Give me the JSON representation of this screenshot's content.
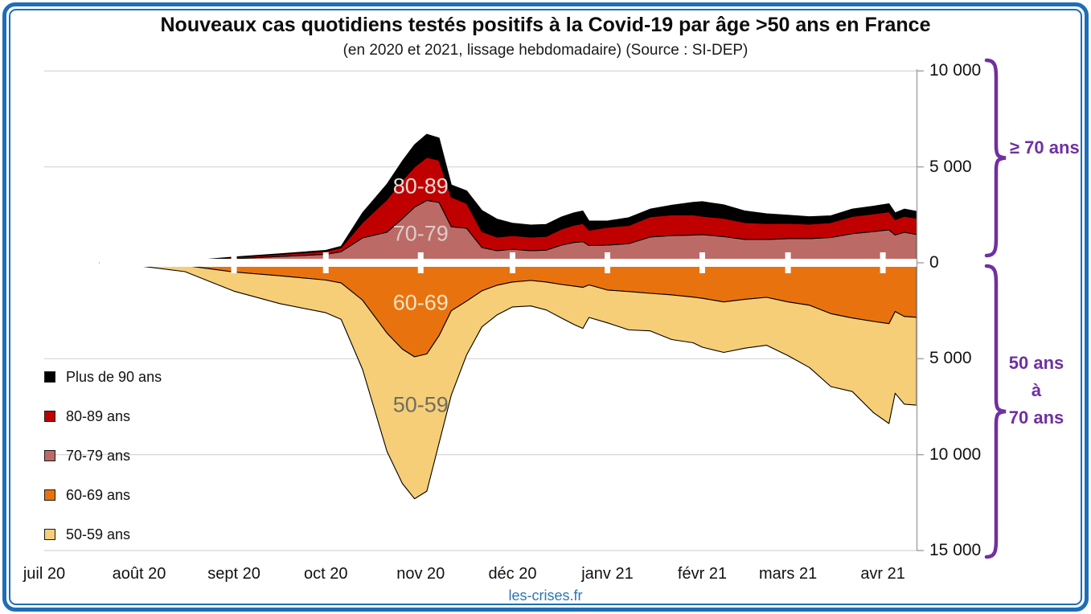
{
  "frame": {
    "border_color": "#1E6EB5"
  },
  "footer": {
    "site_label": "les-crises.fr"
  },
  "chart_data": {
    "type": "area",
    "stacked": true,
    "mirrored": true,
    "title": "Nouveaux cas quotidiens testés positifs à la Covid-19 par âge >50 ans en France",
    "subtitle": "(en 2020 et 2021, lissage hebdomadaire) (Source : SI-DEP)",
    "x_axis": {
      "note": "days since 2020-07-01, weekly-smoothed daily new positive cases",
      "tick_labels": [
        "juil 20",
        "août 20",
        "sept 20",
        "oct 20",
        "nov 20",
        "déc 20",
        "janv 21",
        "févr 21",
        "mars 21",
        "avr 21"
      ],
      "tick_days": [
        0,
        31,
        62,
        92,
        123,
        153,
        184,
        215,
        243,
        274
      ],
      "domain_days": [
        0,
        285
      ]
    },
    "y_axis": {
      "tick_labels": [
        "10 000",
        "5 000",
        "0",
        "5 000",
        "10 000",
        "15 000"
      ],
      "tick_values": [
        10000,
        5000,
        0,
        -5000,
        -10000,
        -15000
      ],
      "upper_max": 10000,
      "lower_max": 15000,
      "grid": true
    },
    "series": [
      {
        "name": "Plus de 90 ans",
        "color": "#000000",
        "side": "up",
        "stack_order": 3
      },
      {
        "name": "80-89 ans",
        "color": "#C00000",
        "side": "up",
        "stack_order": 2
      },
      {
        "name": "70-79 ans",
        "color": "#BC6A66",
        "side": "up",
        "stack_order": 1
      },
      {
        "name": "60-69 ans",
        "color": "#E8730E",
        "side": "down",
        "stack_order": 1
      },
      {
        "name": "50-59 ans",
        "color": "#F6CE78",
        "side": "down",
        "stack_order": 2
      }
    ],
    "legend_position": "left-middle",
    "value_order": [
      "Plus de 90 ans",
      "80-89 ans",
      "70-79 ans",
      "60-69 ans",
      "50-59 ans"
    ],
    "samples": [
      {
        "day": 18,
        "values": [
          0,
          0,
          0,
          0,
          0
        ]
      },
      {
        "day": 31,
        "values": [
          5,
          10,
          20,
          50,
          110
        ]
      },
      {
        "day": 46,
        "values": [
          10,
          25,
          55,
          140,
          320
        ]
      },
      {
        "day": 62,
        "values": [
          25,
          65,
          210,
          480,
          1000
        ]
      },
      {
        "day": 77,
        "values": [
          35,
          105,
          330,
          680,
          1450
        ]
      },
      {
        "day": 92,
        "values": [
          50,
          160,
          440,
          900,
          1700
        ]
      },
      {
        "day": 97,
        "values": [
          70,
          210,
          580,
          1050,
          1900
        ]
      },
      {
        "day": 104,
        "values": [
          500,
          800,
          1300,
          1950,
          3600
        ]
      },
      {
        "day": 112,
        "values": [
          800,
          1700,
          1600,
          3670,
          6170
        ]
      },
      {
        "day": 117,
        "values": [
          1000,
          2000,
          2300,
          4500,
          7000
        ]
      },
      {
        "day": 121,
        "values": [
          1150,
          2100,
          2900,
          4900,
          7400
        ]
      },
      {
        "day": 125,
        "values": [
          1200,
          2250,
          3250,
          4750,
          7150
        ]
      },
      {
        "day": 129,
        "values": [
          1150,
          2200,
          3150,
          3800,
          5600
        ]
      },
      {
        "day": 133,
        "values": [
          630,
          1550,
          1880,
          2500,
          4400
        ]
      },
      {
        "day": 138,
        "values": [
          650,
          1300,
          1800,
          2000,
          2800
        ]
      },
      {
        "day": 143,
        "values": [
          1100,
          830,
          800,
          1460,
          1880
        ]
      },
      {
        "day": 148,
        "values": [
          930,
          710,
          630,
          1170,
          1540
        ]
      },
      {
        "day": 153,
        "values": [
          640,
          710,
          710,
          1000,
          1300
        ]
      },
      {
        "day": 159,
        "values": [
          630,
          710,
          630,
          920,
          1330
        ]
      },
      {
        "day": 164,
        "values": [
          620,
          720,
          660,
          1000,
          1460
        ]
      },
      {
        "day": 169,
        "values": [
          630,
          840,
          920,
          1130,
          1750
        ]
      },
      {
        "day": 173,
        "values": [
          640,
          900,
          1060,
          1210,
          2000
        ]
      },
      {
        "day": 176,
        "values": [
          650,
          950,
          1100,
          1280,
          2140
        ]
      },
      {
        "day": 178,
        "values": [
          480,
          800,
          900,
          1150,
          1700
        ]
      },
      {
        "day": 184,
        "values": [
          330,
          930,
          920,
          1420,
          1710
        ]
      },
      {
        "day": 191,
        "values": [
          400,
          950,
          1000,
          1500,
          2000
        ]
      },
      {
        "day": 198,
        "values": [
          400,
          1050,
          1350,
          1590,
          1960
        ]
      },
      {
        "day": 205,
        "values": [
          500,
          1080,
          1420,
          1670,
          2330
        ]
      },
      {
        "day": 212,
        "values": [
          650,
          1050,
          1450,
          1790,
          2380
        ]
      },
      {
        "day": 215,
        "values": [
          755,
          965,
          1470,
          1850,
          2550
        ]
      },
      {
        "day": 222,
        "values": [
          700,
          950,
          1370,
          2040,
          2630
        ]
      },
      {
        "day": 229,
        "values": [
          600,
          880,
          1220,
          1900,
          2550
        ]
      },
      {
        "day": 236,
        "values": [
          500,
          830,
          1220,
          1800,
          2500
        ]
      },
      {
        "day": 243,
        "values": [
          420,
          800,
          1260,
          2040,
          2800
        ]
      },
      {
        "day": 250,
        "values": [
          380,
          760,
          1260,
          2210,
          3250
        ]
      },
      {
        "day": 257,
        "values": [
          350,
          780,
          1320,
          2650,
          3800
        ]
      },
      {
        "day": 264,
        "values": [
          380,
          900,
          1520,
          2880,
          3830
        ]
      },
      {
        "day": 271,
        "values": [
          400,
          920,
          1630,
          3060,
          4760
        ]
      },
      {
        "day": 276,
        "values": [
          420,
          940,
          1720,
          3170,
          5210
        ]
      },
      {
        "day": 278,
        "values": [
          350,
          800,
          1450,
          2540,
          4260
        ]
      },
      {
        "day": 281,
        "values": [
          370,
          840,
          1590,
          2800,
          4570
        ]
      },
      {
        "day": 285,
        "values": [
          360,
          840,
          1480,
          2840,
          4580
        ]
      }
    ],
    "area_labels": [
      {
        "text": "80-89",
        "day": 123,
        "value": 3980,
        "color": "#EADCD8"
      },
      {
        "text": "70-79",
        "day": 123,
        "value": 1510,
        "color": "#DCCCC9"
      },
      {
        "text": "60-69",
        "day": 123,
        "value": -2095,
        "color": "#F4E4C4"
      },
      {
        "text": "50-59",
        "day": 123,
        "value": -7415,
        "color": "#6F6D60"
      }
    ],
    "annotations": {
      "accent_color": "#7030A0",
      "bracket_upper_label": "≥ 70 ans",
      "bracket_lower_label_lines": [
        "50 ans",
        "à",
        "70 ans"
      ]
    }
  }
}
